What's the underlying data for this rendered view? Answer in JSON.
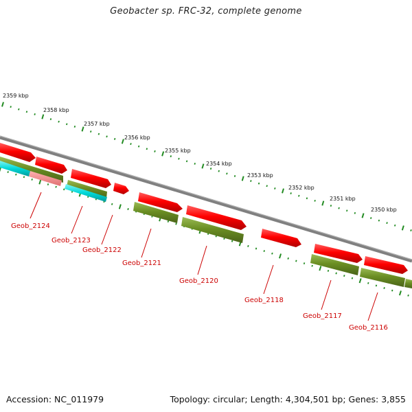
{
  "title": "Geobacter sp. FRC-32, complete genome",
  "footer": {
    "accession": "Accession: NC_011979",
    "summary": "Topology: circular; Length: 4,304,501 bp; Genes: 3,855"
  },
  "colors": {
    "backbone": "#808080",
    "forward_gene": "#ff0000",
    "reverse_gene": "#6b8e23",
    "rna_gene": "#00d8d8",
    "pseudo_gene": "#f08080",
    "tick": "#228b22",
    "label": "#cc0000"
  },
  "scale_ticks": [
    {
      "label": "2359 kbp"
    },
    {
      "label": "2358 kbp"
    },
    {
      "label": "2357 kbp"
    },
    {
      "label": "2356 kbp"
    },
    {
      "label": "2355 kbp"
    },
    {
      "label": "2354 kbp"
    },
    {
      "label": "2353 kbp"
    },
    {
      "label": "2352 kbp"
    },
    {
      "label": "2351 kbp"
    },
    {
      "label": "2350 kbp"
    }
  ],
  "gene_labels": [
    {
      "text": "Geob_2124"
    },
    {
      "text": "Geob_2123"
    },
    {
      "text": "Geob_2122"
    },
    {
      "text": "Geob_2121"
    },
    {
      "text": "Geob_2120"
    },
    {
      "text": "Geob_2118"
    },
    {
      "text": "Geob_2117"
    },
    {
      "text": "Geob_2116"
    }
  ]
}
